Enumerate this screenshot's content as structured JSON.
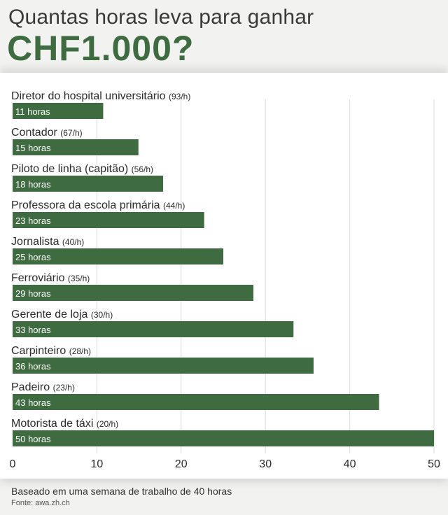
{
  "header": {
    "title_line1": "Quantas horas leva para ganhar",
    "title_line2": "CHF1.000?"
  },
  "footer": {
    "note": "Baseado em uma semana de trabalho de 40 horas",
    "source": "Fonte: awa.zh.ch"
  },
  "colors": {
    "bar": "#3e6b3f",
    "title_accent": "#3e6b3f",
    "grid": "#dcdcdc"
  },
  "chart_data": {
    "type": "bar",
    "orientation": "horizontal",
    "categories": [
      "Diretor do hospital universitário",
      "Contador",
      "Piloto de linha (capitão)",
      "Professora da escola primária",
      "Jornalista",
      "Ferroviário",
      "Gerente de loja",
      "Carpinteiro",
      "Padeiro",
      "Motorista de táxi"
    ],
    "rates": [
      "(93/h)",
      "(67/h)",
      "(56/h)",
      "(44/h)",
      "(40/h)",
      "(35/h)",
      "(30/h)",
      "(28/h)",
      "(23/h)",
      "(20/h)"
    ],
    "values": [
      10.75,
      14.93,
      17.86,
      22.73,
      25,
      28.57,
      33.33,
      35.71,
      43.48,
      50
    ],
    "data_labels": [
      "11 horas",
      "15 horas",
      "18 horas",
      "23 horas",
      "25 horas",
      "29 horas",
      "33 horas",
      "36 horas",
      "43 horas",
      "50 horas"
    ],
    "xlim": [
      0,
      50
    ],
    "xticks": [
      0,
      10,
      20,
      30,
      40,
      50
    ],
    "grid": true
  }
}
